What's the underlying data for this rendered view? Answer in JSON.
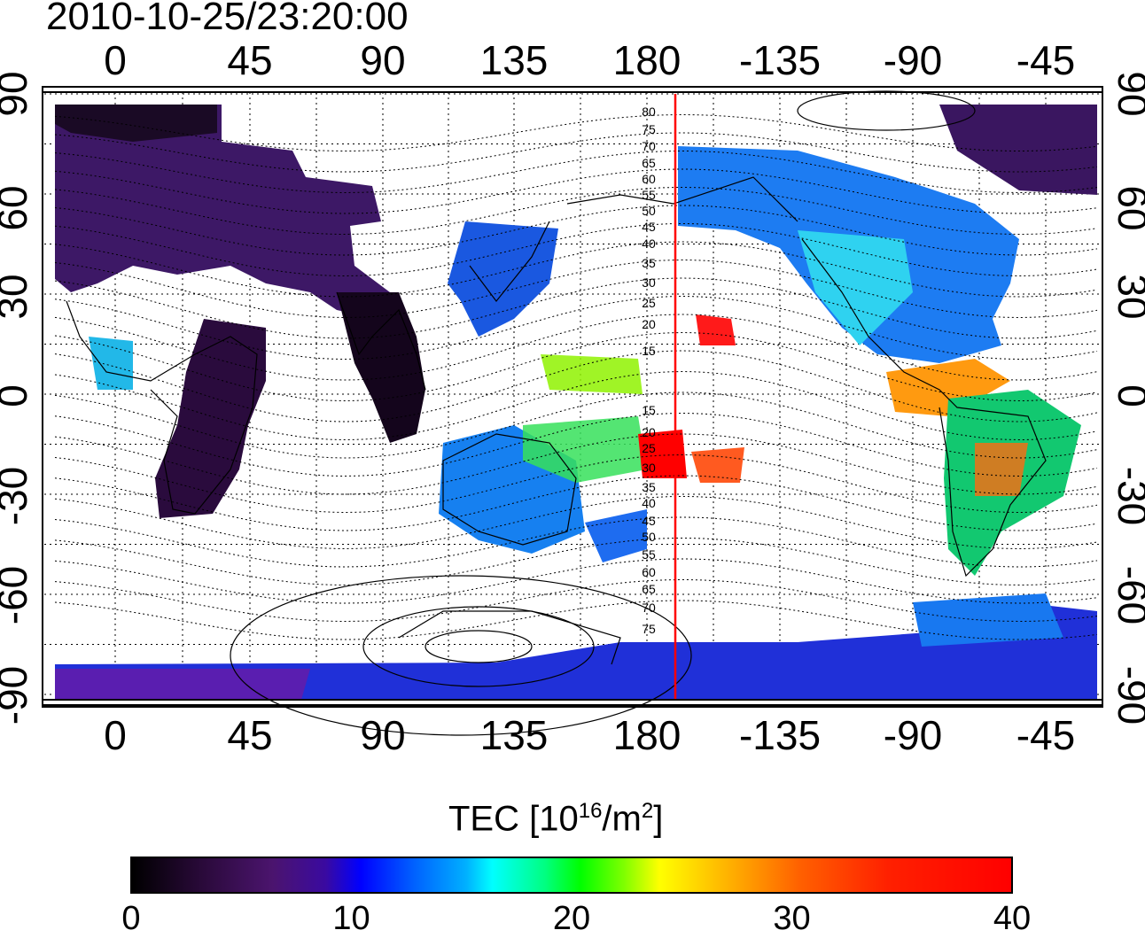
{
  "title": "2010-10-25/23:20:00",
  "map": {
    "lon_ticks": [
      "0",
      "45",
      "90",
      "135",
      "180",
      "-135",
      "-90",
      "-45"
    ],
    "lat_ticks": [
      "90",
      "60",
      "30",
      "0",
      "-30",
      "-60",
      "-90"
    ],
    "contour_labels": [
      "80",
      "75",
      "70",
      "65",
      "60",
      "55",
      "50",
      "45",
      "40",
      "35",
      "30",
      "25",
      "20",
      "15",
      "15",
      "20",
      "25",
      "30",
      "35",
      "40",
      "45",
      "50",
      "55",
      "60",
      "65",
      "70",
      "75"
    ],
    "terminator_color": "#ff0000"
  },
  "colorbar": {
    "title_main": "TEC  [10",
    "title_exp1": "16",
    "title_mid": "/m",
    "title_exp2": "2",
    "title_end": "]",
    "ticks": [
      "0",
      "10",
      "20",
      "30",
      "40"
    ],
    "range": [
      0,
      40
    ]
  }
}
